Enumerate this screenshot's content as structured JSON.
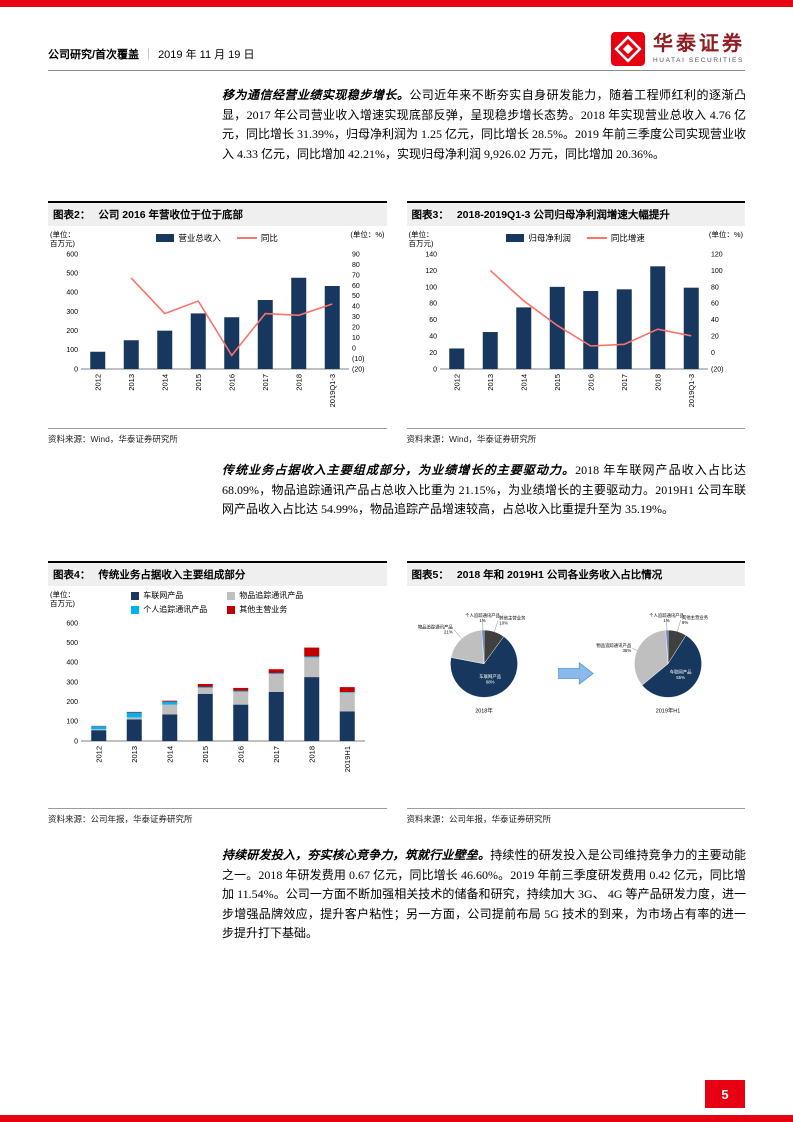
{
  "header": {
    "category": "公司研究/首次覆盖",
    "sep": "｜",
    "date": "2019 年 11 月 19 日",
    "brand": "华泰证券",
    "brand_en": "HUATAI SECURITIES"
  },
  "paragraphs": [
    {
      "lead": "移为通信经营业绩实现稳步增长。",
      "body": "公司近年来不断夯实自身研发能力，随着工程师红利的逐渐凸显，2017 年公司营业收入增速实现底部反弹，呈现稳步增长态势。2018 年实现营业总收入 4.76 亿元，同比增长 31.39%，归母净利润为 1.25 亿元，同比增长 28.5%。2019 年前三季度公司实现营业收入 4.33 亿元，同比增加 42.21%，实现归母净利润 9,926.02 万元，同比增加 20.36%。"
    },
    {
      "lead": "传统业务占据收入主要组成部分，为业绩增长的主要驱动力。",
      "body": "2018 年车联网产品收入占比达 68.09%，物品追踪通讯产品占总收入比重为 21.15%，为业绩增长的主要驱动力。2019H1 公司车联网产品收入占比达 54.99%，物品追踪产品增速较高，占总收入比重提升至为 35.19%。"
    },
    {
      "lead": "持续研发投入，夯实核心竞争力，筑就行业壁垒。",
      "body": "持续性的研发投入是公司维持竞争力的主要动能之一。2018 年研发费用 0.67 亿元，同比增长 46.60%。2019 年前三季度研发费用 0.42 亿元，同比增加 11.54%。公司一方面不断加强相关技术的储备和研究，持续加大 3G、 4G 等产品研发力度，进一步增强品牌效应，提升客户粘性；另一方面，公司提前布局 5G 技术的到来，为市场占有率的进一步提升打下基础。"
    }
  ],
  "figures": [
    {
      "label": "图表2：",
      "title": "公司 2016 年营收位于位于底部",
      "source": "资料来源：Wind，华泰证券研究所"
    },
    {
      "label": "图表3：",
      "title": "2018-2019Q1-3 公司归母净利润增速大幅提升",
      "source": "资料来源：Wind，华泰证券研究所"
    },
    {
      "label": "图表4：",
      "title": "传统业务占据收入主要组成部分",
      "source": "资料来源：公司年报，华泰证券研究所"
    },
    {
      "label": "图表5：",
      "title": "2018 年和 2019H1 公司各业务收入占比情况",
      "source": "资料来源：公司年报，华泰证券研究所"
    }
  ],
  "footer": {
    "page_number": "5"
  },
  "colors": {
    "brand_red": "#E60012",
    "bar_navy": "#17375E",
    "line_red": "#FA7268",
    "gray": "#BFBFBF",
    "light_blue": "#00B0F0",
    "dark_red": "#C00000"
  },
  "chart_data": [
    {
      "id": "fig2",
      "type": "bar-line",
      "title": "公司 2016 年营收位于位于底部",
      "unit_left": [
        "(单位：",
        "百万元)"
      ],
      "unit_right": "(单位：%)",
      "legend": [
        {
          "label": "营业总收入",
          "kind": "bar",
          "color": "#17375E"
        },
        {
          "label": "同比",
          "kind": "line",
          "color": "#FA7268"
        }
      ],
      "categories": [
        "2012",
        "2013",
        "2014",
        "2015",
        "2016",
        "2017",
        "2018",
        "2019Q1-3"
      ],
      "bars": {
        "name": "营业总收入",
        "color": "#17375E",
        "values": [
          90,
          150,
          200,
          290,
          270,
          360,
          476,
          433
        ]
      },
      "line": {
        "name": "同比",
        "color": "#FA7268",
        "values": [
          null,
          67,
          33,
          45,
          -7,
          33,
          31.4,
          42.2
        ]
      },
      "y_left": {
        "min": 0,
        "max": 600,
        "step": 100
      },
      "y_right": {
        "min": -20,
        "max": 90,
        "step": 10
      }
    },
    {
      "id": "fig3",
      "type": "bar-line",
      "title": "2018-2019Q1-3 公司归母净利润增速大幅提升",
      "unit_left": [
        "(单位：",
        "百万元)"
      ],
      "unit_right": "(单位：%)",
      "legend": [
        {
          "label": "归母净利润",
          "kind": "bar",
          "color": "#17375E"
        },
        {
          "label": "同比增速",
          "kind": "line",
          "color": "#FA7268"
        }
      ],
      "categories": [
        "2012",
        "2013",
        "2014",
        "2015",
        "2016",
        "2017",
        "2018",
        "2019Q1-3"
      ],
      "bars": {
        "name": "归母净利润",
        "color": "#17375E",
        "values": [
          25,
          45,
          75,
          100,
          95,
          97,
          125,
          99
        ]
      },
      "line": {
        "name": "同比增速",
        "color": "#FA7268",
        "values": [
          null,
          100,
          63,
          33,
          8,
          10,
          28.5,
          20.4
        ]
      },
      "y_left": {
        "min": 0,
        "max": 140,
        "step": 20
      },
      "y_right": {
        "min": -20,
        "max": 120,
        "step": 20
      }
    },
    {
      "id": "fig4",
      "type": "stacked-bar",
      "title": "传统业务占据收入主要组成部分",
      "unit_left": [
        "(单位：",
        "百万元)"
      ],
      "categories": [
        "2012",
        "2013",
        "2014",
        "2015",
        "2016",
        "2017",
        "2018",
        "2019H1"
      ],
      "series": [
        {
          "name": "车联网产品",
          "color": "#17375E",
          "values": [
            55,
            110,
            135,
            240,
            185,
            250,
            325,
            150
          ]
        },
        {
          "name": "物品追踪通讯产品",
          "color": "#BFBFBF",
          "values": [
            5,
            10,
            50,
            30,
            65,
            90,
            100,
            96
          ]
        },
        {
          "name": "个人追踪通讯产品",
          "color": "#00B0F0",
          "values": [
            15,
            25,
            15,
            5,
            5,
            5,
            5,
            3
          ]
        },
        {
          "name": "其他主营业务",
          "color": "#C00000",
          "values": [
            2,
            3,
            5,
            15,
            15,
            20,
            45,
            25
          ]
        }
      ],
      "y_left": {
        "min": 0,
        "max": 600,
        "step": 100
      }
    },
    {
      "id": "fig5",
      "type": "pie-pair",
      "title": "2018 年和 2019H1 公司各业务收入占比情况",
      "pies": [
        {
          "caption": "2018年",
          "slices": [
            {
              "label": "其他主营业务",
              "pct": 10,
              "color": "#404040"
            },
            {
              "label": "车联网产品",
              "pct": 68,
              "color": "#17375E"
            },
            {
              "label": "物品追踪通讯产品",
              "pct": 21,
              "color": "#BFBFBF"
            },
            {
              "label": "个人追踪通讯产品",
              "pct": 1,
              "color": "#4472C4"
            }
          ]
        },
        {
          "caption": "2019年H1",
          "slices": [
            {
              "label": "其他主营业务",
              "pct": 9,
              "color": "#404040"
            },
            {
              "label": "车联网产品",
              "pct": 55,
              "color": "#17375E"
            },
            {
              "label": "物品追踪通讯产品",
              "pct": 35,
              "color": "#BFBFBF"
            },
            {
              "label": "个人追踪通讯产品",
              "pct": 1,
              "color": "#4472C4"
            }
          ]
        }
      ]
    }
  ]
}
